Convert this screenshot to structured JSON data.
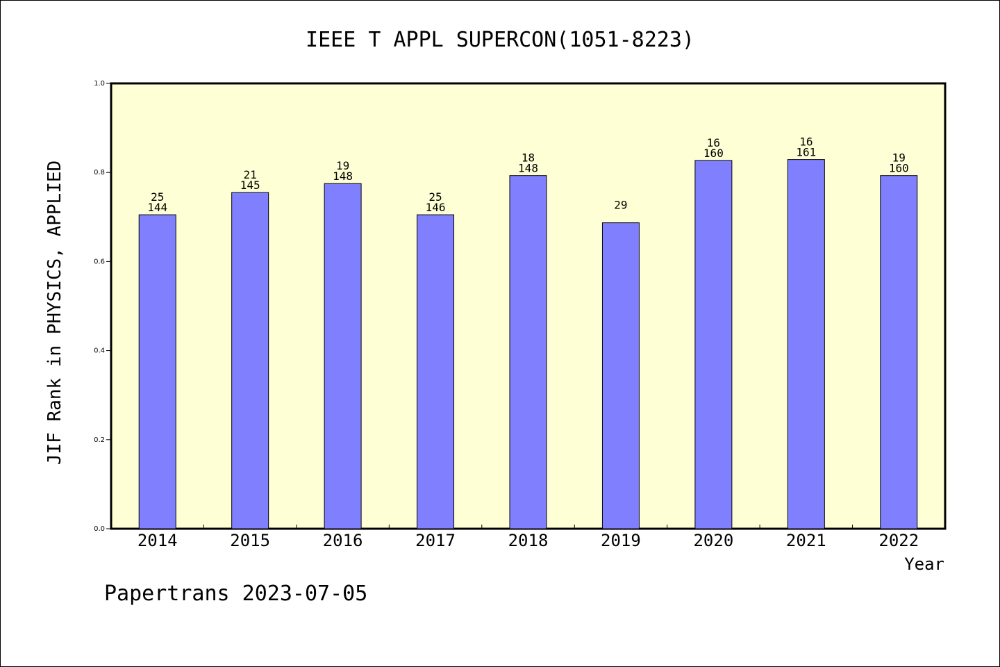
{
  "chart_data": {
    "type": "bar",
    "title": "IEEE T APPL SUPERCON(1051-8223)",
    "xlabel": "Year",
    "ylabel": "JIF Rank in PHYSICS, APPLIED",
    "ylim": [
      0,
      1.0
    ],
    "yticks": [
      "0.0",
      "0.2",
      "0.4",
      "0.6",
      "0.8",
      "1.0"
    ],
    "grid": false,
    "categories": [
      "2014",
      "2015",
      "2016",
      "2017",
      "2018",
      "2019",
      "2020",
      "2021",
      "2022"
    ],
    "values": [
      0.705,
      0.755,
      0.775,
      0.705,
      0.793,
      0.687,
      0.827,
      0.829,
      0.793
    ],
    "rank_labels": [
      "25",
      "21",
      "19",
      "25",
      "18",
      "29",
      "16",
      "16",
      "19"
    ],
    "total_labels": [
      "144",
      "145",
      "148",
      "146",
      "148",
      "",
      "160",
      "161",
      "160"
    ],
    "colors": {
      "bar": "#8080ff",
      "plot_background": "#ffffd5",
      "axis": "#000000"
    },
    "footer": "Papertrans 2023-07-05"
  }
}
